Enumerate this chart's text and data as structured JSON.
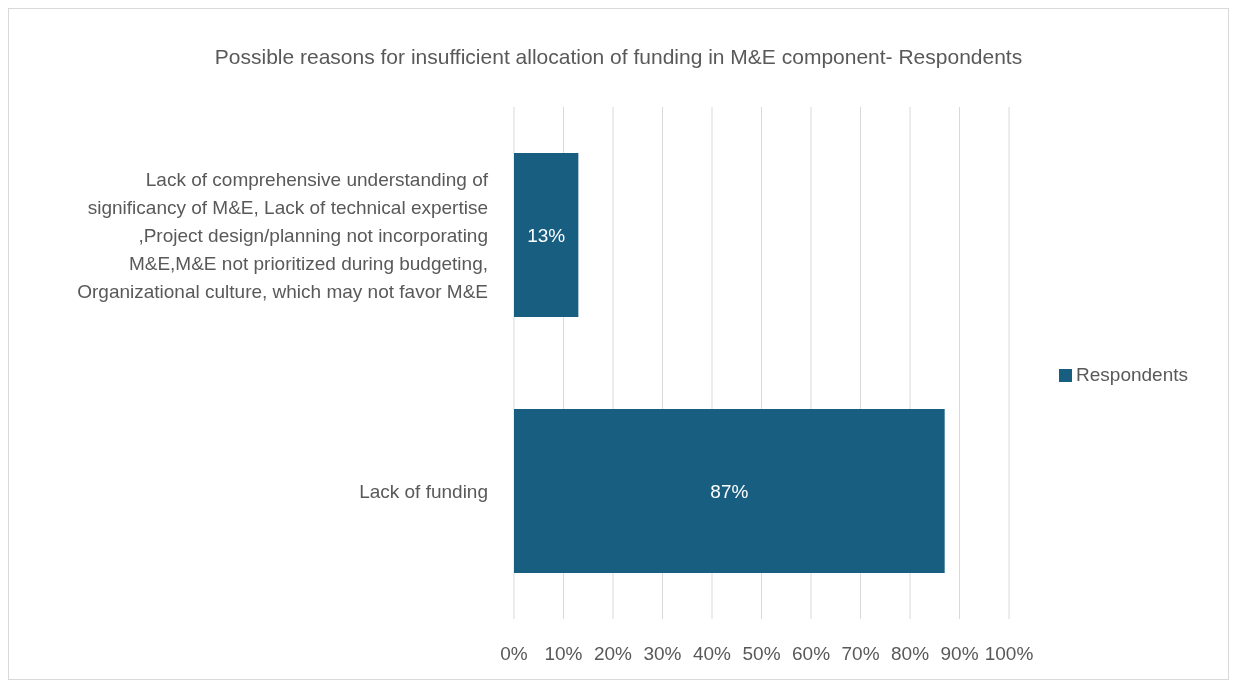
{
  "chart_data": {
    "type": "bar",
    "orientation": "horizontal",
    "title": "Possible reasons for insufficient allocation of funding in M&E component- Respondents",
    "categories": [
      "Lack of comprehensive understanding of significancy of M&E, Lack of technical expertise ,Project design/planning not incorporating M&E,M&E not prioritized during budgeting, Organizational culture, which may not favor M&E",
      "Lack of funding"
    ],
    "series": [
      {
        "name": "Respondents",
        "color": "#175e80",
        "values": [
          13,
          87
        ],
        "value_labels": [
          "13%",
          "87%"
        ]
      }
    ],
    "xlim": [
      0,
      100
    ],
    "xticks": [
      {
        "value": 0,
        "label": "0%"
      },
      {
        "value": 10,
        "label": "10%"
      },
      {
        "value": 20,
        "label": "20%"
      },
      {
        "value": 30,
        "label": "30%"
      },
      {
        "value": 40,
        "label": "40%"
      },
      {
        "value": 50,
        "label": "50%"
      },
      {
        "value": 60,
        "label": "60%"
      },
      {
        "value": 70,
        "label": "70%"
      },
      {
        "value": 80,
        "label": "80%"
      },
      {
        "value": 90,
        "label": "90%"
      },
      {
        "value": 100,
        "label": "100%"
      }
    ],
    "grid": "x",
    "legend": "right"
  }
}
